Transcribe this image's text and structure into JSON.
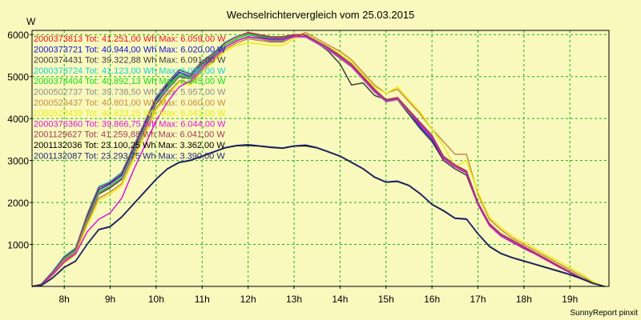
{
  "chart_data": {
    "type": "line",
    "title": "Wechselrichtervergleich vom 25.03.2015",
    "y_unit": "W",
    "footer": "SunnyReport pinxit",
    "xlim": [
      7.3,
      19.85
    ],
    "ylim": [
      0,
      6100
    ],
    "x_ticks": [
      8,
      9,
      10,
      11,
      12,
      13,
      14,
      15,
      16,
      17,
      18,
      19
    ],
    "x_tick_labels": [
      "8h",
      "9h",
      "10h",
      "11h",
      "12h",
      "13h",
      "14h",
      "15h",
      "16h",
      "17h",
      "18h",
      "19h"
    ],
    "y_ticks": [
      1000,
      2000,
      3000,
      4000,
      5000,
      6000
    ],
    "y_tick_labels": [
      "1000",
      "2000",
      "3000",
      "4000",
      "5000",
      "6000"
    ],
    "grid": true,
    "legend_position": "top-left",
    "x": [
      7.3,
      7.5,
      7.75,
      8.0,
      8.25,
      8.5,
      8.75,
      9.0,
      9.25,
      9.5,
      9.75,
      10.0,
      10.25,
      10.5,
      10.75,
      11.0,
      11.25,
      11.5,
      11.75,
      12.0,
      12.25,
      12.5,
      12.75,
      13.0,
      13.25,
      13.5,
      13.75,
      14.0,
      14.25,
      14.5,
      14.75,
      15.0,
      15.25,
      15.5,
      15.75,
      16.0,
      16.25,
      16.5,
      16.75,
      17.0,
      17.25,
      17.5,
      17.75,
      18.0,
      18.25,
      18.5,
      18.75,
      19.0,
      19.25,
      19.5,
      19.75
    ],
    "series": [
      {
        "name": "2000373813 Tot: 41.251,00 Wh Max: 6.059,00 W",
        "color": "#e8141c",
        "values": [
          0,
          50,
          350,
          700,
          900,
          1700,
          2350,
          2480,
          2700,
          3300,
          3900,
          4500,
          4850,
          5150,
          5050,
          5350,
          5550,
          5800,
          5950,
          6050,
          6000,
          5950,
          5950,
          6000,
          6000,
          5850,
          5700,
          5500,
          5300,
          5000,
          4700,
          4450,
          4500,
          4200,
          3900,
          3600,
          3100,
          2900,
          2750,
          2000,
          1500,
          1250,
          1100,
          950,
          800,
          650,
          500,
          350,
          200,
          80,
          0
        ]
      },
      {
        "name": "2000373721 Tot: 40.944,00 Wh Max: 6.020,00 W",
        "color": "#1414d2",
        "values": [
          0,
          50,
          330,
          680,
          880,
          1650,
          2300,
          2450,
          2650,
          3250,
          3850,
          4450,
          4800,
          5100,
          5000,
          5300,
          5500,
          5750,
          5900,
          6000,
          5950,
          5900,
          5900,
          5980,
          5980,
          5800,
          5650,
          5450,
          5250,
          4950,
          4650,
          4400,
          4450,
          4150,
          3800,
          3500,
          3050,
          2850,
          2700,
          1950,
          1450,
          1200,
          1050,
          920,
          780,
          630,
          480,
          340,
          200,
          80,
          0
        ]
      },
      {
        "name": "2000374431 Tot: 39.322,88 Wh Max: 6.091,00 W",
        "color": "#3c3c3c",
        "values": [
          0,
          40,
          300,
          620,
          820,
          1550,
          2200,
          2350,
          2550,
          3150,
          3750,
          4350,
          4700,
          5000,
          4950,
          5250,
          5450,
          5700,
          5850,
          5950,
          5900,
          5850,
          5850,
          5950,
          5950,
          5800,
          5600,
          5300,
          4800,
          4850,
          4550,
          4450,
          4450,
          4100,
          3750,
          3450,
          3000,
          2800,
          2650,
          1950,
          1450,
          1200,
          1050,
          900,
          770,
          620,
          470,
          330,
          190,
          70,
          0
        ]
      },
      {
        "name": "2000373724 Tot: 41.123,00 Wh Max: 6.030,00 W",
        "color": "#14d2d2",
        "values": [
          0,
          55,
          360,
          720,
          920,
          1720,
          2380,
          2500,
          2720,
          3320,
          3920,
          4520,
          4870,
          5170,
          5070,
          5370,
          5570,
          5820,
          5960,
          6030,
          5990,
          5940,
          5940,
          5990,
          5990,
          5840,
          5690,
          5490,
          5290,
          4990,
          4690,
          4440,
          4490,
          4190,
          3890,
          3590,
          3090,
          2890,
          2740,
          1990,
          1490,
          1240,
          1090,
          940,
          790,
          640,
          490,
          345,
          200,
          80,
          0
        ]
      },
      {
        "name": "2000374404 Tot: 40.892,13 Wh Max: 6.045,00 W",
        "color": "#14dc14",
        "values": [
          0,
          50,
          320,
          660,
          860,
          1600,
          2250,
          2400,
          2600,
          3200,
          3800,
          4400,
          4750,
          5050,
          4980,
          5280,
          5480,
          5750,
          5900,
          6000,
          5960,
          5920,
          5920,
          5990,
          5990,
          5830,
          5680,
          5480,
          5270,
          4970,
          4670,
          4420,
          4470,
          4170,
          3870,
          3570,
          3070,
          2870,
          2720,
          1970,
          1470,
          1220,
          1070,
          930,
          780,
          630,
          480,
          340,
          200,
          80,
          0
        ]
      },
      {
        "name": "2000502737 Tot: 39.738,50 Wh Max: 5.957,00 W",
        "color": "#8c8c8c",
        "values": [
          0,
          45,
          300,
          640,
          840,
          1580,
          2220,
          2380,
          2580,
          3180,
          3780,
          4380,
          4720,
          5020,
          4960,
          5260,
          5460,
          5700,
          5860,
          5930,
          5900,
          5860,
          5860,
          5940,
          5940,
          5790,
          5630,
          5430,
          5230,
          4930,
          4630,
          4400,
          4450,
          4150,
          3850,
          3550,
          3050,
          2850,
          2700,
          1950,
          1450,
          1200,
          1060,
          920,
          770,
          620,
          470,
          330,
          190,
          70,
          0
        ]
      },
      {
        "name": "2000523437 Tot: 40.801,00 Wh Max: 6.060,00 W",
        "color": "#c88c3c",
        "values": [
          0,
          40,
          280,
          600,
          800,
          1500,
          2100,
          2250,
          2450,
          3050,
          3650,
          4250,
          4600,
          4900,
          4850,
          5150,
          5400,
          5650,
          5800,
          5900,
          5860,
          5820,
          5820,
          5950,
          6050,
          5900,
          5750,
          5600,
          5400,
          5100,
          4800,
          4600,
          4700,
          4400,
          4100,
          3750,
          3450,
          3150,
          3150,
          2200,
          1600,
          1350,
          1150,
          1000,
          850,
          700,
          550,
          400,
          250,
          100,
          0
        ]
      },
      {
        "name": "2000523439 Tot: 40.623,25 Wh Max: 6.041,00 W",
        "color": "#ebeb14",
        "values": [
          0,
          35,
          260,
          560,
          760,
          1450,
          2050,
          2200,
          2400,
          3000,
          3600,
          4200,
          4550,
          4850,
          4800,
          5100,
          5350,
          5600,
          5750,
          5800,
          5780,
          5740,
          5740,
          5900,
          6000,
          5850,
          5700,
          5550,
          5350,
          5050,
          4750,
          4600,
          4750,
          4450,
          4150,
          3750,
          3350,
          2850,
          3000,
          2250,
          1650,
          1400,
          1200,
          1050,
          900,
          750,
          600,
          450,
          300,
          120,
          0
        ]
      },
      {
        "name": "2000376360 Tot: 39.866,75 Wh Max: 6.044,00 W",
        "color": "#dc14dc",
        "values": [
          0,
          40,
          280,
          580,
          780,
          1300,
          1600,
          1750,
          2100,
          2750,
          3350,
          3950,
          4400,
          4750,
          4900,
          5200,
          5450,
          5700,
          5850,
          5950,
          5920,
          5880,
          5880,
          5950,
          5950,
          5800,
          5650,
          5450,
          5250,
          4950,
          4650,
          4420,
          4470,
          4170,
          3850,
          3550,
          3050,
          2850,
          2700,
          1950,
          1450,
          1200,
          1050,
          910,
          770,
          620,
          470,
          330,
          190,
          70,
          0
        ]
      },
      {
        "name": "2001129627 Tot: 41.259,88 Wh Max: 6.041,00 W",
        "color": "#a03c5a",
        "values": [
          0,
          50,
          340,
          700,
          900,
          1700,
          2350,
          2480,
          2700,
          3300,
          3900,
          4500,
          4850,
          5150,
          5050,
          5350,
          5550,
          5800,
          5950,
          6040,
          5990,
          5940,
          5940,
          5990,
          5990,
          5840,
          5690,
          5490,
          5290,
          4990,
          4690,
          4440,
          4490,
          4190,
          3890,
          3590,
          3090,
          2890,
          2740,
          1990,
          1490,
          1240,
          1090,
          940,
          790,
          640,
          490,
          345,
          200,
          80,
          0
        ]
      },
      {
        "name": "2001132036 Tot: 23.100,25 Wh Max: 3.362,00 W",
        "color": "#000000",
        "values": [
          0,
          20,
          200,
          450,
          600,
          1000,
          1350,
          1420,
          1650,
          1950,
          2250,
          2550,
          2800,
          2950,
          3000,
          3100,
          3200,
          3300,
          3350,
          3360,
          3340,
          3310,
          3290,
          3340,
          3350,
          3300,
          3200,
          3100,
          2950,
          2800,
          2600,
          2480,
          2500,
          2400,
          2200,
          1950,
          1800,
          1620,
          1600,
          1250,
          950,
          780,
          680,
          600,
          520,
          440,
          360,
          280,
          180,
          70,
          0
        ]
      },
      {
        "name": "2001132087 Tot: 23.293,75 Wh Max: 3.390,00 W",
        "color": "#1e2a78",
        "values": [
          0,
          22,
          210,
          460,
          610,
          1010,
          1360,
          1430,
          1660,
          1960,
          2260,
          2560,
          2810,
          2960,
          3010,
          3110,
          3210,
          3310,
          3360,
          3380,
          3350,
          3320,
          3300,
          3350,
          3370,
          3310,
          3210,
          3110,
          2960,
          2810,
          2610,
          2490,
          2510,
          2410,
          2210,
          1960,
          1810,
          1630,
          1610,
          1260,
          960,
          790,
          690,
          610,
          530,
          450,
          370,
          290,
          190,
          75,
          0
        ]
      }
    ]
  }
}
